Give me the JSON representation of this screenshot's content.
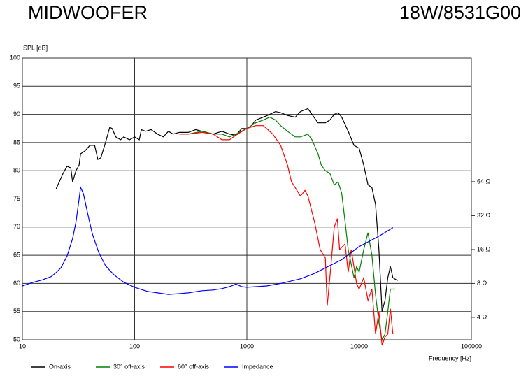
{
  "chart_data": {
    "type": "line",
    "title": "MIDWOOFER",
    "subtitle": "18W/8531G00",
    "y_label": "SPL [dB]",
    "x_label": "Frequency [Hz]",
    "xscale": "log",
    "y2scale": "log",
    "grid": true,
    "legend": "bottom",
    "xlim": [
      10,
      100000
    ],
    "xticks": [
      10,
      100,
      1000,
      10000,
      100000
    ],
    "ylim": [
      50,
      100
    ],
    "yticks": [
      50,
      55,
      60,
      65,
      70,
      75,
      80,
      85,
      90,
      95,
      100
    ],
    "y2lim": [
      2.53,
      802
    ],
    "y2ticks": [
      {
        "value": 4,
        "label": "4 Ω"
      },
      {
        "value": 8,
        "label": "8 Ω"
      },
      {
        "value": 16,
        "label": "16 Ω"
      },
      {
        "value": 32,
        "label": "32 Ω"
      },
      {
        "value": 64,
        "label": "64 Ω"
      }
    ],
    "series": [
      {
        "name": "On-axis",
        "color": "#000000",
        "x": [
          20,
          23,
          25,
          27,
          28,
          30,
          32,
          33,
          36,
          40,
          44,
          47,
          50,
          55,
          60,
          63,
          68,
          75,
          80,
          90,
          100,
          110,
          115,
          125,
          140,
          160,
          180,
          200,
          220,
          250,
          300,
          350,
          400,
          500,
          600,
          700,
          800,
          900,
          1000,
          1100,
          1200,
          1400,
          1600,
          1800,
          2000,
          2300,
          2700,
          3000,
          3500,
          3800,
          4300,
          5000,
          5500,
          6000,
          6500,
          7000,
          8000,
          9000,
          10000,
          11000,
          12000,
          13000,
          14000,
          15000,
          16000,
          17000,
          18000,
          19000,
          20000,
          22000
        ],
        "values": [
          76.8,
          79.5,
          80.8,
          80.5,
          78,
          80,
          81,
          83,
          83.5,
          84.5,
          84.5,
          82,
          82.3,
          85,
          87.7,
          87.5,
          86,
          85.5,
          86,
          85.5,
          86,
          85.5,
          87.3,
          87,
          87.3,
          86.5,
          86,
          87,
          86.5,
          86.8,
          86.8,
          87.3,
          87,
          86.5,
          87,
          86.5,
          86.3,
          87.5,
          87.5,
          88,
          89,
          89.5,
          90,
          90.5,
          90.3,
          89.8,
          89.5,
          90.5,
          91,
          90,
          88.5,
          88.5,
          89,
          90,
          90.3,
          89.5,
          87,
          84.5,
          84,
          81,
          77.5,
          77,
          74,
          66,
          55,
          57,
          61,
          63,
          61,
          60.5
        ]
      },
      {
        "name": "30° off-axis",
        "color": "#008000",
        "x": [
          250,
          300,
          400,
          500,
          600,
          700,
          800,
          1000,
          1200,
          1400,
          1600,
          1800,
          2000,
          2300,
          2700,
          3000,
          3500,
          3800,
          4300,
          4600,
          5000,
          5500,
          6000,
          6500,
          7000,
          7500,
          8000,
          9000,
          9500,
          10000,
          11000,
          12000,
          13000,
          14000,
          15000,
          16000,
          17000,
          18000,
          19000,
          21000
        ],
        "values": [
          86.5,
          86.5,
          87,
          86.5,
          86.5,
          86,
          86.5,
          87.5,
          88.5,
          89,
          89.5,
          89,
          88,
          87,
          86,
          86,
          86.5,
          85.5,
          83,
          81,
          80,
          79.5,
          77.5,
          78,
          76,
          71,
          66,
          61,
          63,
          62,
          66,
          69,
          65,
          58,
          53,
          50,
          51,
          55,
          59,
          59
        ]
      },
      {
        "name": "60° off-axis",
        "color": "#ff0000",
        "x": [
          250,
          300,
          400,
          500,
          600,
          700,
          800,
          1000,
          1200,
          1400,
          1700,
          2000,
          2300,
          2500,
          2700,
          3000,
          3300,
          3500,
          4000,
          4500,
          5000,
          5200,
          5600,
          6000,
          6400,
          6700,
          7500,
          8000,
          8500,
          9500,
          10000,
          11000,
          12000,
          13000,
          14000,
          15000,
          16000,
          17000,
          18000,
          19000,
          20000
        ],
        "values": [
          86.5,
          86.5,
          86.8,
          86.5,
          85.5,
          85.5,
          86.3,
          87.5,
          88,
          88,
          86.5,
          84.5,
          81,
          78,
          77,
          75.5,
          76.5,
          75.5,
          71,
          66,
          64.5,
          56,
          63,
          70,
          71.5,
          66,
          67,
          62,
          66,
          60,
          59,
          61,
          57,
          59,
          51,
          55,
          49,
          50.5,
          51,
          55.5,
          51
        ]
      },
      {
        "name": "Impedance",
        "color": "#0000ff",
        "axis": "y2",
        "x": [
          10,
          12,
          15,
          18,
          20,
          22,
          25,
          28,
          30,
          32,
          33,
          35,
          38,
          42,
          48,
          55,
          65,
          80,
          100,
          130,
          160,
          200,
          250,
          300,
          400,
          500,
          600,
          700,
          800,
          900,
          1000,
          1500,
          2000,
          3000,
          4000,
          5000,
          7000,
          10000,
          15000,
          20000
        ],
        "values": [
          7.6,
          8.1,
          8.6,
          9.2,
          10,
          11,
          14,
          20,
          28,
          45,
          57,
          50,
          34,
          22,
          15,
          11.5,
          9.6,
          8.2,
          7.4,
          6.8,
          6.6,
          6.4,
          6.5,
          6.6,
          6.9,
          7.0,
          7.2,
          7.5,
          7.9,
          7.5,
          7.4,
          7.6,
          8.0,
          8.8,
          9.8,
          11,
          13,
          17,
          21,
          25
        ]
      }
    ]
  }
}
